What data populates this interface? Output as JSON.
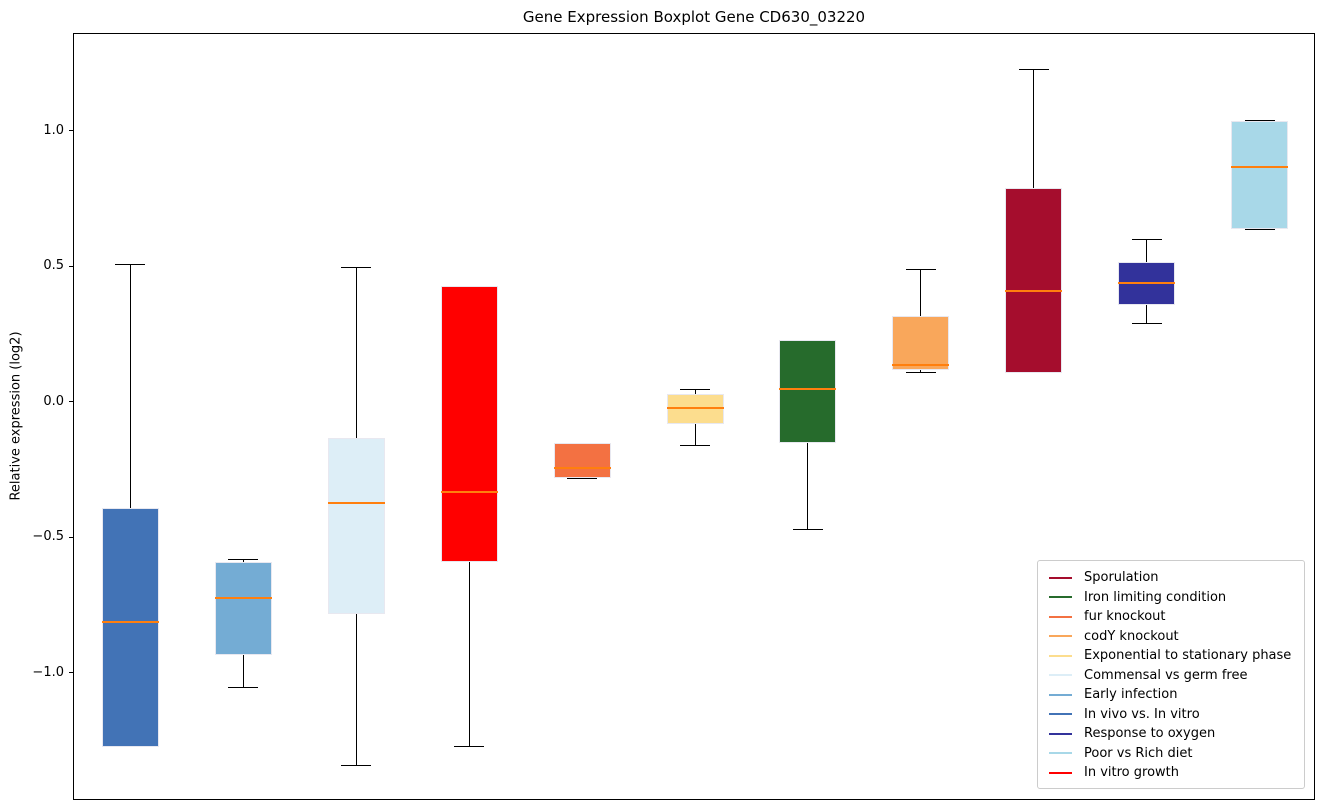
{
  "title": "Gene Expression Boxplot Gene CD630_03220",
  "y_axis": {
    "label": "Relative expression (log2)",
    "ticks": [
      {
        "label": "1.0",
        "value": 1.0
      },
      {
        "label": "0.5",
        "value": 0.5
      },
      {
        "label": "0.0",
        "value": 0.0
      },
      {
        "label": "−0.5",
        "value": -0.5
      },
      {
        "label": "−1.0",
        "value": -1.0
      }
    ]
  },
  "chart_data": {
    "type": "boxplot",
    "title": "Gene Expression Boxplot Gene CD630_03220",
    "xlabel": "",
    "ylabel": "Relative expression (log2)",
    "ylim": [
      -1.47,
      1.36
    ],
    "yticks": [
      1.0,
      0.5,
      0.0,
      -0.5,
      -1.0
    ],
    "grid": false,
    "median_color": "#ff7f0e",
    "whisker_color": "#000000",
    "box_edge_color": "#e8e8f0",
    "legend_position": "lower right",
    "boxes": [
      {
        "name": "In vivo vs. In vitro",
        "color": "#4273b6",
        "whisker_low": -1.27,
        "q1": -1.27,
        "median": -0.81,
        "q3": -0.39,
        "whisker_high": 0.51
      },
      {
        "name": "Early infection",
        "color": "#74acd4",
        "whisker_low": -1.05,
        "q1": -0.93,
        "median": -0.72,
        "q3": -0.59,
        "whisker_high": -0.58
      },
      {
        "name": "Commensal vs germ free",
        "color": "#ddeef7",
        "whisker_low": -1.34,
        "q1": -0.78,
        "median": -0.37,
        "q3": -0.13,
        "whisker_high": 0.5
      },
      {
        "name": "In vitro growth",
        "color": "#ff0000",
        "whisker_low": -1.27,
        "q1": -0.59,
        "median": -0.33,
        "q3": 0.43,
        "whisker_high": 0.43
      },
      {
        "name": "fur knockout",
        "color": "#f37142",
        "whisker_low": -0.28,
        "q1": -0.28,
        "median": -0.24,
        "q3": -0.15,
        "whisker_high": -0.15
      },
      {
        "name": "Exponential to stationary phase",
        "color": "#fcdd8e",
        "whisker_low": -0.16,
        "q1": -0.08,
        "median": -0.02,
        "q3": 0.03,
        "whisker_high": 0.05
      },
      {
        "name": "Iron limiting condition",
        "color": "#266b2c",
        "whisker_low": -0.47,
        "q1": -0.15,
        "median": 0.05,
        "q3": 0.23,
        "whisker_high": 0.23
      },
      {
        "name": "codY knockout",
        "color": "#f9a75b",
        "whisker_low": 0.11,
        "q1": 0.12,
        "median": 0.14,
        "q3": 0.32,
        "whisker_high": 0.49
      },
      {
        "name": "Sporulation",
        "color": "#a50d2d",
        "whisker_low": 0.11,
        "q1": 0.11,
        "median": 0.41,
        "q3": 0.79,
        "whisker_high": 1.23
      },
      {
        "name": "Response to oxygen",
        "color": "#32329b",
        "whisker_low": 0.29,
        "q1": 0.36,
        "median": 0.44,
        "q3": 0.52,
        "whisker_high": 0.6
      },
      {
        "name": "Poor vs Rich diet",
        "color": "#a8d8e8",
        "whisker_low": 0.64,
        "q1": 0.64,
        "median": 0.87,
        "q3": 1.04,
        "whisker_high": 1.04
      }
    ],
    "legend_entries": [
      {
        "label": "Sporulation",
        "color": "#a50d2d"
      },
      {
        "label": "Iron limiting condition",
        "color": "#266b2c"
      },
      {
        "label": "fur knockout",
        "color": "#f37142"
      },
      {
        "label": "codY knockout",
        "color": "#f9a75b"
      },
      {
        "label": "Exponential to stationary phase",
        "color": "#fcdd8e"
      },
      {
        "label": "Commensal vs germ free",
        "color": "#ddeef7"
      },
      {
        "label": "Early infection",
        "color": "#74acd4"
      },
      {
        "label": "In vivo vs. In vitro",
        "color": "#4273b6"
      },
      {
        "label": "Response to oxygen",
        "color": "#32329b"
      },
      {
        "label": "Poor vs Rich diet",
        "color": "#a8d8e8"
      },
      {
        "label": "In vitro growth",
        "color": "#ff0000"
      }
    ]
  }
}
